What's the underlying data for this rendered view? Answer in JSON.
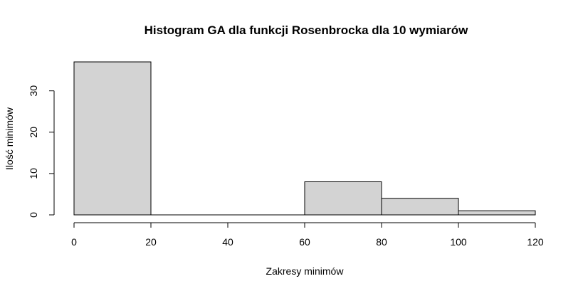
{
  "chart_data": {
    "type": "bar",
    "title": "Histogram GA dla funkcji Rosenbrocka dla 10 wymiarów",
    "xlabel": "Zakresy minimów",
    "ylabel": "Ilość minimów",
    "bins": [
      {
        "start": 0,
        "end": 20,
        "count": 37
      },
      {
        "start": 20,
        "end": 40,
        "count": 0
      },
      {
        "start": 40,
        "end": 60,
        "count": 0
      },
      {
        "start": 60,
        "end": 80,
        "count": 8
      },
      {
        "start": 80,
        "end": 100,
        "count": 4
      },
      {
        "start": 100,
        "end": 120,
        "count": 1
      }
    ],
    "x_ticks": [
      0,
      20,
      40,
      60,
      80,
      100,
      120
    ],
    "y_ticks": [
      0,
      10,
      20,
      30
    ],
    "xlim": [
      0,
      120
    ],
    "ylim": [
      0,
      37
    ],
    "grid": false,
    "colors": {
      "bar_fill": "#d3d3d3",
      "bar_stroke": "#000000"
    }
  }
}
